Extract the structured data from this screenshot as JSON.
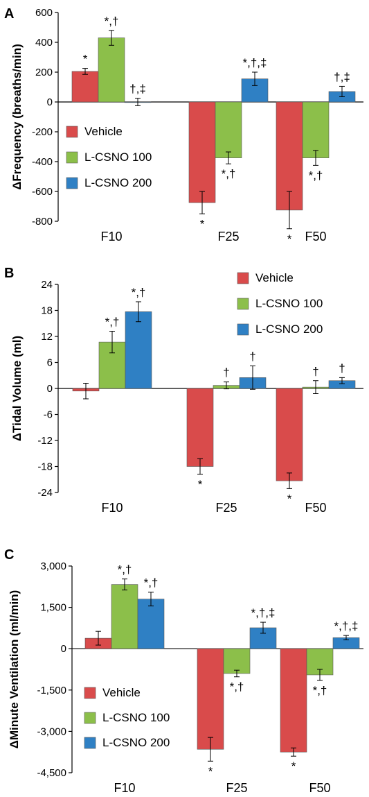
{
  "colors": {
    "Vehicle": "#d94b4b",
    "L-CSNO 100": "#8cbf4a",
    "L-CSNO 200": "#2f80c4",
    "axis": "#000000"
  },
  "chart_data": [
    {
      "type": "bar",
      "panel": "A",
      "ylabel": "ΔFrequency (breaths/min)",
      "categories": [
        "F10",
        "F25",
        "F50"
      ],
      "ylim": [
        -800,
        600
      ],
      "yticks": [
        600,
        400,
        200,
        0,
        -200,
        -400,
        -600,
        -800
      ],
      "ytick_labels": [
        "600",
        "400",
        "200",
        "0",
        "-200",
        "-400",
        "-600",
        "-800"
      ],
      "legend_position": "bottom-left",
      "series": [
        {
          "name": "Vehicle",
          "values": [
            205,
            -675,
            -725
          ],
          "errors": [
            20,
            75,
            125
          ],
          "annotations": [
            "*",
            "*",
            "*"
          ]
        },
        {
          "name": "L-CSNO 100",
          "values": [
            430,
            -375,
            -375
          ],
          "errors": [
            50,
            40,
            50
          ],
          "annotations": [
            "*,†",
            "*,†",
            "*,†"
          ]
        },
        {
          "name": "L-CSNO 200",
          "values": [
            0,
            155,
            70
          ],
          "errors": [
            25,
            45,
            35
          ],
          "annotations": [
            "†,‡",
            "*,†,‡",
            "†,‡"
          ]
        }
      ]
    },
    {
      "type": "bar",
      "panel": "B",
      "ylabel": "ΔTidal Volume (ml)",
      "categories": [
        "F10",
        "F25",
        "F50"
      ],
      "ylim": [
        -24,
        24
      ],
      "yticks": [
        24,
        18,
        12,
        6,
        0,
        -6,
        -12,
        -18,
        -24
      ],
      "ytick_labels": [
        "24",
        "18",
        "12",
        "6",
        "0",
        "-6",
        "-12",
        "-18",
        "-24"
      ],
      "legend_position": "top-right",
      "series": [
        {
          "name": "Vehicle",
          "values": [
            -0.6,
            -18.0,
            -21.3
          ],
          "errors": [
            1.8,
            1.8,
            1.8
          ],
          "annotations": [
            "",
            "*",
            "*"
          ]
        },
        {
          "name": "L-CSNO 100",
          "values": [
            10.7,
            0.7,
            0.3
          ],
          "errors": [
            2.5,
            0.8,
            1.5
          ],
          "annotations": [
            "*,†",
            "†",
            "†"
          ]
        },
        {
          "name": "L-CSNO 200",
          "values": [
            17.7,
            2.5,
            1.8
          ],
          "errors": [
            2.3,
            2.7,
            0.7
          ],
          "annotations": [
            "*,†",
            "†",
            "†"
          ]
        }
      ]
    },
    {
      "type": "bar",
      "panel": "C",
      "ylabel": "ΔMinute Ventilation (ml/min)",
      "categories": [
        "F10",
        "F25",
        "F50"
      ],
      "ylim": [
        -4500,
        3000
      ],
      "yticks": [
        3000,
        1500,
        0,
        -1500,
        -3000,
        -4500
      ],
      "ytick_labels": [
        "3,000",
        "1,500",
        "0",
        "-1,500",
        "-3,000",
        "-4,500"
      ],
      "legend_position": "bottom-left",
      "series": [
        {
          "name": "Vehicle",
          "values": [
            380,
            -3650,
            -3750
          ],
          "errors": [
            250,
            430,
            150
          ],
          "annotations": [
            "",
            "*",
            "*"
          ]
        },
        {
          "name": "L-CSNO 100",
          "values": [
            2330,
            -900,
            -950
          ],
          "errors": [
            200,
            120,
            200
          ],
          "annotations": [
            "*,†",
            "*,†",
            "*,†"
          ]
        },
        {
          "name": "L-CSNO 200",
          "values": [
            1800,
            760,
            400
          ],
          "errors": [
            250,
            200,
            80
          ],
          "annotations": [
            "*,†",
            "*,†,‡",
            "*,†,‡"
          ]
        }
      ]
    }
  ]
}
